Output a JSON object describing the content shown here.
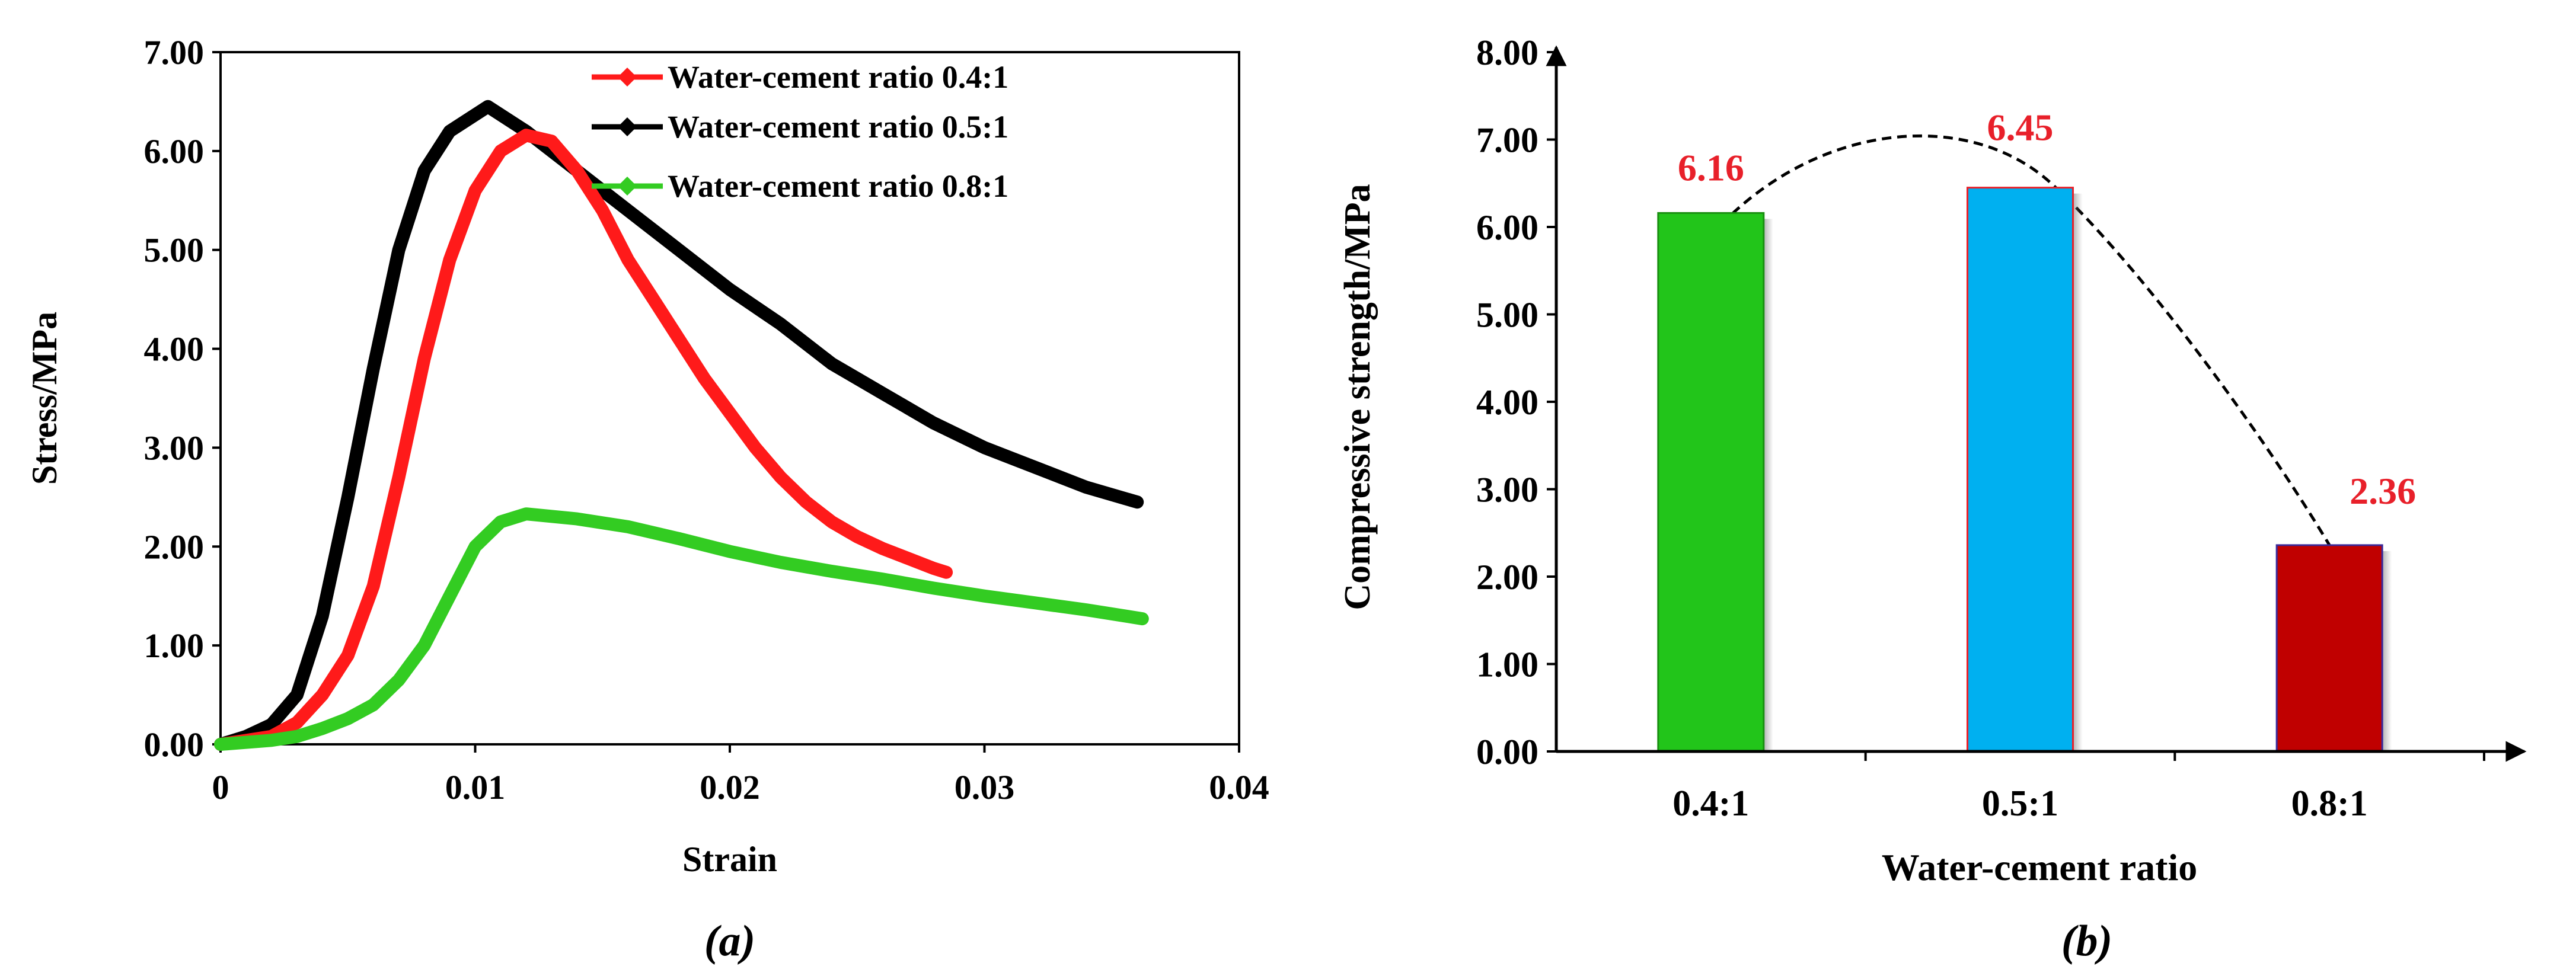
{
  "chart_data": [
    {
      "type": "line",
      "panel_label": "(a)",
      "xlabel": "Strain",
      "ylabel": "Stress/MPa",
      "xlim": [
        0,
        0.04
      ],
      "ylim": [
        0,
        7
      ],
      "xticks": [
        "0",
        "0.01",
        "0.02",
        "0.03",
        "0.04"
      ],
      "yticks": [
        "0.00",
        "1.00",
        "2.00",
        "3.00",
        "4.00",
        "5.00",
        "6.00",
        "7.00"
      ],
      "legend_position": "top-right",
      "series": [
        {
          "name": "Water-cement ratio 0.4:1",
          "color": "#ff1a1a",
          "x": [
            0,
            0.002,
            0.003,
            0.004,
            0.005,
            0.006,
            0.007,
            0.008,
            0.009,
            0.01,
            0.011,
            0.012,
            0.013,
            0.014,
            0.015,
            0.016,
            0.017,
            0.018,
            0.019,
            0.02,
            0.021,
            0.022,
            0.023,
            0.024,
            0.025,
            0.026,
            0.027,
            0.028,
            0.0285
          ],
          "y": [
            0,
            0.08,
            0.22,
            0.5,
            0.9,
            1.6,
            2.7,
            3.9,
            4.9,
            5.6,
            6.0,
            6.16,
            6.1,
            5.8,
            5.4,
            4.9,
            4.5,
            4.1,
            3.7,
            3.35,
            3.0,
            2.7,
            2.45,
            2.25,
            2.1,
            1.98,
            1.88,
            1.78,
            1.74
          ]
        },
        {
          "name": "Water-cement ratio 0.5:1",
          "color": "#000000",
          "x": [
            0,
            0.001,
            0.002,
            0.003,
            0.004,
            0.005,
            0.006,
            0.007,
            0.008,
            0.009,
            0.0105,
            0.012,
            0.014,
            0.016,
            0.018,
            0.02,
            0.022,
            0.024,
            0.026,
            0.028,
            0.03,
            0.032,
            0.034,
            0.036
          ],
          "y": [
            0,
            0.08,
            0.2,
            0.5,
            1.3,
            2.5,
            3.8,
            5.0,
            5.8,
            6.2,
            6.45,
            6.2,
            5.8,
            5.4,
            5.0,
            4.6,
            4.25,
            3.85,
            3.55,
            3.25,
            3.0,
            2.8,
            2.6,
            2.45
          ]
        },
        {
          "name": "Water-cement ratio 0.8:1",
          "color": "#33cc22",
          "x": [
            0,
            0.002,
            0.003,
            0.004,
            0.005,
            0.006,
            0.007,
            0.008,
            0.009,
            0.01,
            0.011,
            0.012,
            0.014,
            0.016,
            0.018,
            0.02,
            0.022,
            0.024,
            0.026,
            0.028,
            0.03,
            0.032,
            0.034,
            0.0362
          ],
          "y": [
            0,
            0.04,
            0.08,
            0.16,
            0.26,
            0.4,
            0.65,
            1.0,
            1.5,
            2.0,
            2.25,
            2.33,
            2.28,
            2.2,
            2.08,
            1.95,
            1.84,
            1.75,
            1.67,
            1.58,
            1.5,
            1.43,
            1.36,
            1.27
          ]
        }
      ]
    },
    {
      "type": "bar",
      "panel_label": "(b)",
      "xlabel": "Water-cement ratio",
      "ylabel": "Compressive strength/MPa",
      "ylim": [
        0,
        8
      ],
      "yticks": [
        "0.00",
        "1.00",
        "2.00",
        "3.00",
        "4.00",
        "5.00",
        "6.00",
        "7.00",
        "8.00"
      ],
      "categories": [
        "0.4:1",
        "0.5:1",
        "0.8:1"
      ],
      "values": [
        6.16,
        6.45,
        2.36
      ],
      "value_labels": [
        "6.16",
        "6.45",
        "2.36"
      ],
      "bar_colors": [
        "#22c51a",
        "#00b0f0",
        "#c00000"
      ],
      "label_color": "#e8202a",
      "trend_line": {
        "style": "dashed",
        "points": [
          [
            0,
            5.9
          ],
          [
            0.6,
            7.0
          ],
          [
            1.1,
            6.5
          ],
          [
            2,
            2.36
          ]
        ]
      }
    }
  ]
}
